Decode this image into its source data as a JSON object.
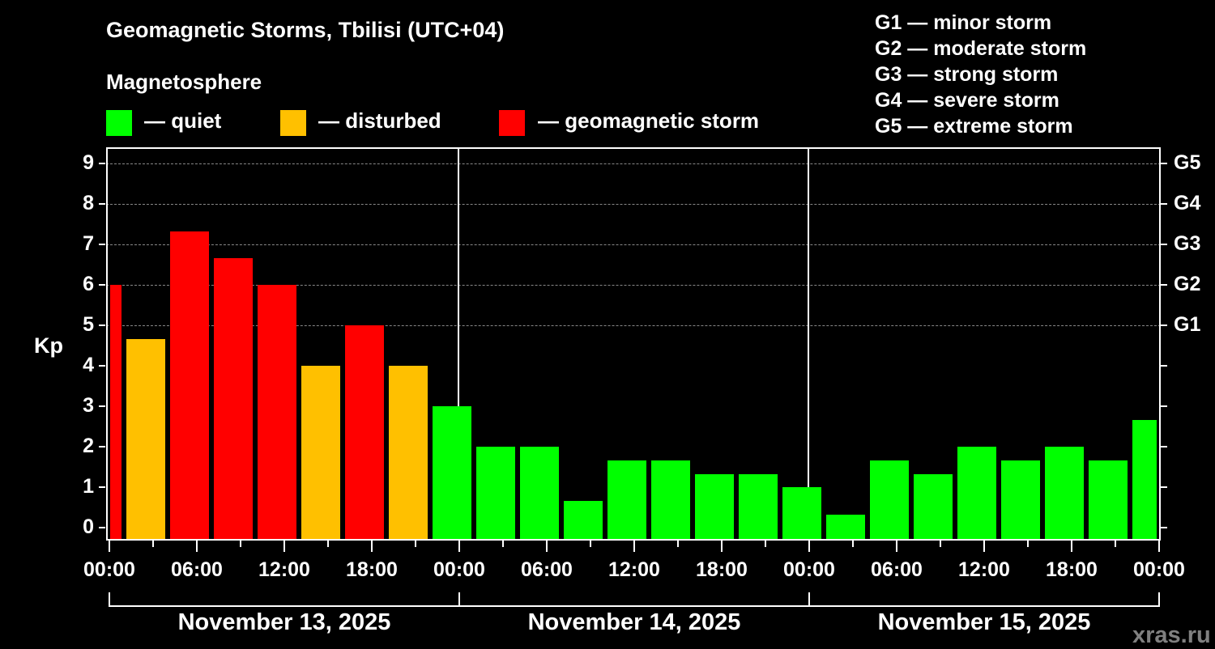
{
  "header": {
    "title": "Geomagnetic Storms, Tbilisi (UTC+04)",
    "subtitle": "Magnetosphere"
  },
  "legend": [
    {
      "label": "— quiet",
      "color": "#00ff00"
    },
    {
      "label": "— disturbed",
      "color": "#ffc000"
    },
    {
      "label": "— geomagnetic storm",
      "color": "#ff0000"
    }
  ],
  "storm_scale": [
    "G1 — minor storm",
    "G2 — moderate storm",
    "G3 — strong storm",
    "G4 — severe storm",
    "G5 — extreme storm"
  ],
  "watermark": "xras.ru",
  "chart_data": {
    "type": "bar",
    "title": "Geomagnetic Storms, Tbilisi (UTC+04)",
    "xlabel": "",
    "ylabel": "Kp",
    "ylim": [
      0,
      9
    ],
    "y_ticks": [
      "0",
      "1",
      "2",
      "3",
      "4",
      "5",
      "6",
      "7",
      "8",
      "9"
    ],
    "right_axis_ticks": [
      {
        "y": 5,
        "label": "G1"
      },
      {
        "y": 6,
        "label": "G2"
      },
      {
        "y": 7,
        "label": "G3"
      },
      {
        "y": 8,
        "label": "G4"
      },
      {
        "y": 9,
        "label": "G5"
      }
    ],
    "x_tick_labels": [
      "00:00",
      "06:00",
      "12:00",
      "18:00",
      "00:00",
      "06:00",
      "12:00",
      "18:00",
      "00:00",
      "06:00",
      "12:00",
      "18:00",
      "00:00"
    ],
    "day_labels": [
      "November 13, 2025",
      "November 14, 2025",
      "November 15, 2025"
    ],
    "grid": "dashed horizontal at 5-9",
    "colors": {
      "quiet": "#00ff00",
      "disturbed": "#ffc000",
      "storm": "#ff0000"
    },
    "bars": [
      {
        "kp": 6.0,
        "level": "storm"
      },
      {
        "kp": 4.67,
        "level": "disturbed"
      },
      {
        "kp": 7.33,
        "level": "storm"
      },
      {
        "kp": 6.67,
        "level": "storm"
      },
      {
        "kp": 6.0,
        "level": "storm"
      },
      {
        "kp": 4.0,
        "level": "disturbed"
      },
      {
        "kp": 5.0,
        "level": "storm"
      },
      {
        "kp": 4.0,
        "level": "disturbed"
      },
      {
        "kp": 3.0,
        "level": "quiet"
      },
      {
        "kp": 2.0,
        "level": "quiet"
      },
      {
        "kp": 2.0,
        "level": "quiet"
      },
      {
        "kp": 0.67,
        "level": "quiet"
      },
      {
        "kp": 1.67,
        "level": "quiet"
      },
      {
        "kp": 1.67,
        "level": "quiet"
      },
      {
        "kp": 1.33,
        "level": "quiet"
      },
      {
        "kp": 1.33,
        "level": "quiet"
      },
      {
        "kp": 1.0,
        "level": "quiet"
      },
      {
        "kp": 0.33,
        "level": "quiet"
      },
      {
        "kp": 1.67,
        "level": "quiet"
      },
      {
        "kp": 1.33,
        "level": "quiet"
      },
      {
        "kp": 2.0,
        "level": "quiet"
      },
      {
        "kp": 1.67,
        "level": "quiet"
      },
      {
        "kp": 2.0,
        "level": "quiet"
      },
      {
        "kp": 1.67,
        "level": "quiet"
      },
      {
        "kp": 2.67,
        "level": "quiet"
      }
    ]
  }
}
